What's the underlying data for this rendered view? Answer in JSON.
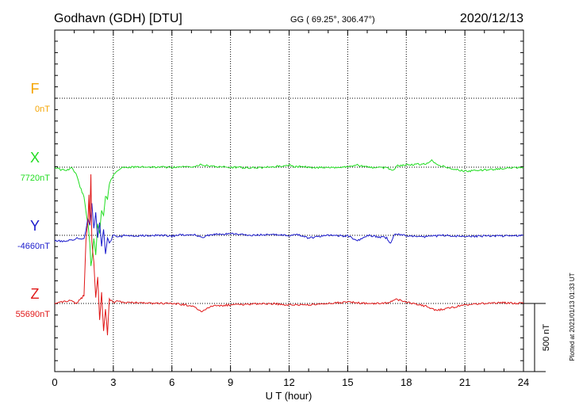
{
  "header": {
    "station": "Godhavn (GDH)  [DTU]",
    "coords": "GG ( 69.25°, 306.47°)",
    "date": "2020/12/13"
  },
  "chart_data": {
    "type": "line",
    "xlabel": "U T (hour)",
    "xlim": [
      0,
      24
    ],
    "xticks": [
      0,
      3,
      6,
      9,
      12,
      15,
      18,
      21,
      24
    ],
    "scale_bar": {
      "label": "500 nT",
      "value_nT": 500
    },
    "plotted_note": "Plotted at 2021/01/13 01:33 UT",
    "series": [
      {
        "name": "F",
        "baseline_label": "0nT",
        "baseline": 0,
        "color": "#f5a400",
        "x": [],
        "y": []
      },
      {
        "name": "X",
        "baseline_label": "7720nT",
        "baseline": 7720,
        "color": "#22dd22",
        "x": [
          0,
          0.3,
          0.6,
          0.9,
          1.1,
          1.3,
          1.5,
          1.6,
          1.7,
          1.8,
          1.85,
          1.9,
          2.0,
          2.1,
          2.2,
          2.3,
          2.4,
          2.5,
          2.6,
          2.7,
          2.8,
          3.0,
          3.2,
          3.5,
          4,
          5,
          6,
          7,
          7.5,
          8,
          9,
          10,
          11,
          12,
          12.3,
          13,
          14,
          15,
          15.5,
          16,
          17,
          17.3,
          17.5,
          18,
          19,
          19.3,
          19.6,
          20,
          21,
          22,
          23,
          24
        ],
        "y": [
          0,
          -18,
          -25,
          -5,
          -55,
          -145,
          -220,
          -320,
          -420,
          -560,
          -720,
          -690,
          -520,
          -640,
          -420,
          -480,
          -310,
          -360,
          -210,
          -240,
          -120,
          -60,
          -30,
          -5,
          0,
          0,
          0,
          5,
          20,
          5,
          0,
          -5,
          0,
          15,
          5,
          0,
          -5,
          0,
          15,
          0,
          -5,
          -30,
          10,
          15,
          25,
          50,
          20,
          0,
          -30,
          -20,
          -10,
          0
        ]
      },
      {
        "name": "Y",
        "baseline_label": "-4660nT",
        "baseline": -4660,
        "color": "#1a1acc",
        "x": [
          0,
          0.4,
          0.8,
          1.2,
          1.5,
          1.7,
          1.8,
          1.9,
          2.0,
          2.1,
          2.2,
          2.3,
          2.4,
          2.5,
          2.6,
          2.7,
          2.8,
          3.0,
          3.3,
          3.6,
          4,
          5,
          6,
          7,
          7.5,
          8,
          9,
          10,
          11,
          12,
          12.3,
          13,
          14,
          15,
          15.5,
          16,
          17,
          17.2,
          17.4,
          18,
          19,
          20,
          21,
          22,
          23,
          24
        ],
        "y": [
          -40,
          -45,
          -35,
          -20,
          -30,
          120,
          70,
          230,
          50,
          170,
          -20,
          90,
          -80,
          40,
          -140,
          -20,
          -60,
          0,
          -10,
          0,
          -5,
          0,
          -5,
          10,
          -15,
          5,
          10,
          0,
          5,
          0,
          10,
          -20,
          0,
          -5,
          -40,
          0,
          -20,
          -60,
          10,
          0,
          -10,
          0,
          -10,
          -5,
          -5,
          0
        ]
      },
      {
        "name": "Z",
        "baseline_label": "55690nT",
        "baseline": 55690,
        "color": "#e01818",
        "x": [
          0,
          0.4,
          0.8,
          1.1,
          1.3,
          1.5,
          1.6,
          1.7,
          1.75,
          1.8,
          1.85,
          1.9,
          2.0,
          2.1,
          2.2,
          2.3,
          2.4,
          2.5,
          2.6,
          2.7,
          2.8,
          3.0,
          3.3,
          3.6,
          4,
          5,
          6,
          7,
          7.5,
          8,
          9,
          10,
          11,
          12,
          13,
          14,
          15,
          16,
          17,
          17.5,
          18,
          19,
          19.5,
          20,
          21,
          22,
          23,
          24
        ],
        "y": [
          0,
          10,
          20,
          0,
          30,
          60,
          470,
          600,
          800,
          580,
          950,
          450,
          300,
          40,
          200,
          -120,
          80,
          -200,
          -40,
          -230,
          30,
          10,
          20,
          0,
          10,
          0,
          0,
          -15,
          -60,
          -20,
          -10,
          -5,
          0,
          -10,
          -10,
          0,
          10,
          0,
          5,
          30,
          10,
          -20,
          -50,
          -40,
          -10,
          0,
          5,
          0
        ]
      }
    ]
  }
}
